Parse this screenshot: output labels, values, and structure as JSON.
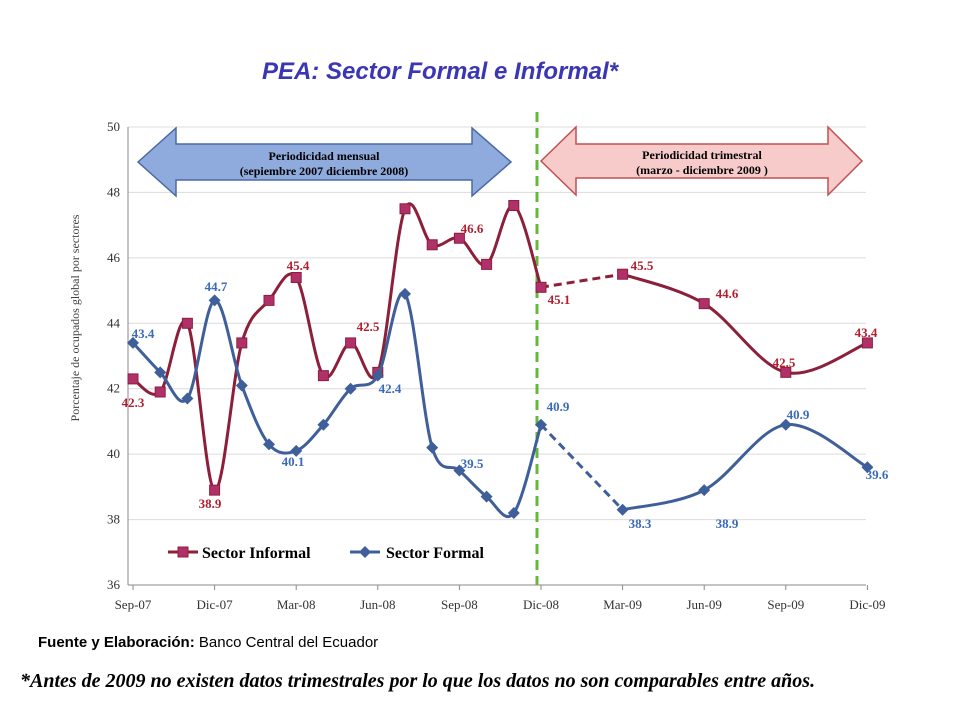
{
  "chart_data": {
    "type": "line",
    "title": "PEA: Sector Formal e Informal*",
    "ylabel": "Porcentaje de ocupados global  por sectores",
    "xlabel": "",
    "ylim": [
      36,
      50
    ],
    "yticks": [
      "36",
      "38",
      "40",
      "42",
      "44",
      "46",
      "48",
      "50"
    ],
    "xtick_labels": [
      "Sep-07",
      "Dic-07",
      "Mar-08",
      "Jun-08",
      "Sep-08",
      "Dic-08",
      "Mar-09",
      "Jun-09",
      "Sep-09",
      "Dic-09"
    ],
    "grid": "horizontal",
    "legend_position": "bottom-left",
    "series": [
      {
        "name": "Sector Informal",
        "color": "#8c1f3a",
        "marker": "square",
        "monthly_values": [
          42.3,
          41.9,
          44.0,
          38.9,
          43.4,
          44.7,
          45.4,
          42.4,
          43.4,
          42.5,
          47.5,
          46.4,
          46.6,
          45.8,
          47.6,
          45.1
        ],
        "quarterly_values": [
          45.1,
          45.5,
          44.6,
          42.5,
          43.4
        ],
        "labels": [
          "42.3",
          "38.9",
          "45.4",
          "42.5",
          "46.6",
          "45.1",
          "45.5",
          "44.6",
          "42.5",
          "43.4"
        ]
      },
      {
        "name": "Sector Formal",
        "color": "#3f5f9a",
        "marker": "diamond",
        "monthly_values": [
          43.4,
          42.5,
          41.7,
          44.7,
          42.1,
          40.3,
          40.1,
          40.9,
          42.0,
          42.4,
          44.9,
          40.2,
          39.5,
          38.7,
          38.2,
          40.9
        ],
        "quarterly_values": [
          40.9,
          38.3,
          38.9,
          40.9,
          39.6
        ],
        "labels": [
          "43.4",
          "44.7",
          "40.1",
          "42.4",
          "39.5",
          "40.9",
          "38.3",
          "38.9",
          "40.9",
          "39.6"
        ]
      }
    ],
    "annotations": {
      "monthly_arrow": [
        "Periodicidad mensual",
        "(sepiembre 2007 diciembre 2008)"
      ],
      "quarterly_arrow": [
        "Periodicidad trimestral",
        "(marzo - diciembre 2009 )"
      ]
    }
  },
  "footer": {
    "source_label": "Fuente y Elaboración:",
    "source_value": "Banco Central del Ecuador",
    "note": "*Antes de 2009 no existen datos trimestrales por lo que los datos no son comparables entre años."
  }
}
